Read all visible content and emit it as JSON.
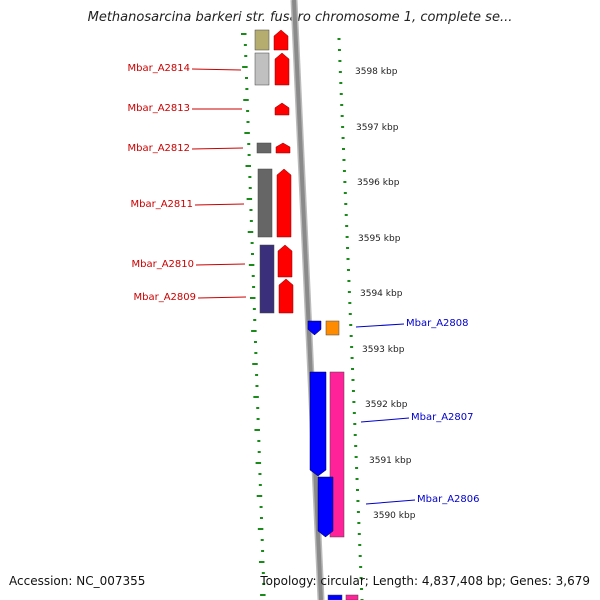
{
  "title": "Methanosarcina barkeri str. fusaro chromosome 1, complete se...",
  "footer": {
    "accession": "Accession: NC_007355",
    "summary": "Topology: circular; Length: 4,837,408 bp; Genes: 3,679"
  },
  "colors": {
    "forward_label": "#cc0000",
    "reverse_label": "#0000cc",
    "strand_forward": "#ff0000",
    "strand_reverse_blue": "#0000ff",
    "strand_reverse_pink": "#ff2299",
    "tick": "#1a8a1a",
    "backbone": "#8a8a8a"
  },
  "scale_labels": [
    {
      "label": "3598 kbp",
      "kbp": 3598
    },
    {
      "label": "3597 kbp",
      "kbp": 3597
    },
    {
      "label": "3596 kbp",
      "kbp": 3596
    },
    {
      "label": "3595 kbp",
      "kbp": 3595
    },
    {
      "label": "3594 kbp",
      "kbp": 3594
    },
    {
      "label": "3593 kbp",
      "kbp": 3593
    },
    {
      "label": "3592 kbp",
      "kbp": 3592
    },
    {
      "label": "3591 kbp",
      "kbp": 3591
    },
    {
      "label": "3590 kbp",
      "kbp": 3590
    }
  ],
  "genes": [
    {
      "name": "Mbar_A2814",
      "strand": "forward"
    },
    {
      "name": "Mbar_A2813",
      "strand": "forward"
    },
    {
      "name": "Mbar_A2812",
      "strand": "forward"
    },
    {
      "name": "Mbar_A2811",
      "strand": "forward"
    },
    {
      "name": "Mbar_A2810",
      "strand": "forward"
    },
    {
      "name": "Mbar_A2809",
      "strand": "forward"
    },
    {
      "name": "Mbar_A2808",
      "strand": "reverse"
    },
    {
      "name": "Mbar_A2807",
      "strand": "reverse"
    },
    {
      "name": "Mbar_A2806",
      "strand": "reverse"
    }
  ]
}
